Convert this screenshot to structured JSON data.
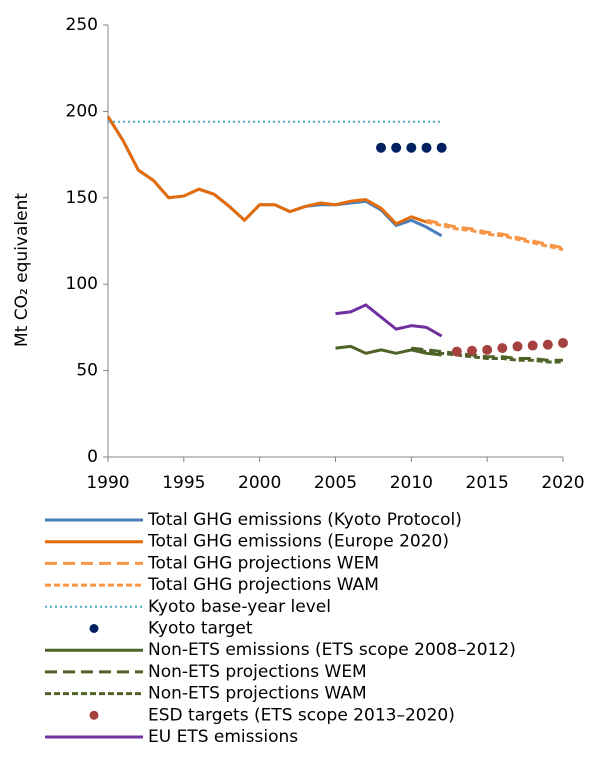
{
  "chart_data": {
    "type": "line",
    "ylabel": "Mt CO₂ equivalent",
    "xlim": [
      1990,
      2020
    ],
    "xticks": [
      1990,
      1995,
      2000,
      2005,
      2010,
      2015,
      2020
    ],
    "ylim": [
      0,
      250
    ],
    "yticks": [
      0,
      50,
      100,
      150,
      200,
      250
    ],
    "series": [
      {
        "name": "Total GHG emissions (Kyoto Protocol)",
        "color": "#4a7ebb",
        "style": "solid",
        "x": [
          1990,
          1991,
          1992,
          1993,
          1994,
          1995,
          1996,
          1997,
          1998,
          1999,
          2000,
          2001,
          2002,
          2003,
          2004,
          2005,
          2006,
          2007,
          2008,
          2009,
          2010,
          2011,
          2012
        ],
        "values": [
          197,
          183,
          166,
          160,
          150,
          151,
          155,
          152,
          145,
          137,
          146,
          146,
          142,
          145,
          146,
          146,
          147,
          148,
          143,
          134,
          137,
          133,
          128
        ]
      },
      {
        "name": "Total GHG emissions (Europe 2020)",
        "color": "#e46c0a",
        "style": "solid",
        "x": [
          1990,
          1991,
          1992,
          1993,
          1994,
          1995,
          1996,
          1997,
          1998,
          1999,
          2000,
          2001,
          2002,
          2003,
          2004,
          2005,
          2006,
          2007,
          2008,
          2009,
          2010,
          2011
        ],
        "values": [
          197,
          183,
          166,
          160,
          150,
          151,
          155,
          152,
          145,
          137,
          146,
          146,
          142,
          145,
          147,
          146,
          148,
          149,
          144,
          135,
          139,
          136
        ]
      },
      {
        "name": "Total GHG projections WEM",
        "color": "#f79646",
        "style": "dashed",
        "x": [
          2011,
          2012,
          2013,
          2014,
          2015,
          2016,
          2017,
          2018,
          2019,
          2020
        ],
        "values": [
          137,
          135,
          133,
          132,
          130,
          129,
          127,
          125,
          123,
          121
        ]
      },
      {
        "name": "Total GHG projections WAM",
        "color": "#f79646",
        "style": "short-dashed",
        "x": [
          2011,
          2012,
          2013,
          2014,
          2015,
          2016,
          2017,
          2018,
          2019,
          2020
        ],
        "values": [
          136,
          134,
          132,
          131,
          129,
          128,
          126,
          124,
          122,
          120
        ]
      },
      {
        "name": "Kyoto base-year level",
        "color": "#4bacc6",
        "style": "dotted",
        "x": [
          1990,
          2012
        ],
        "values": [
          194,
          194
        ]
      },
      {
        "name": "Kyoto target",
        "color": "#002060",
        "style": "marker",
        "x": [
          2008,
          2009,
          2010,
          2011,
          2012
        ],
        "values": [
          179,
          179,
          179,
          179,
          179
        ]
      },
      {
        "name": "Non-ETS emissions (ETS scope 2008–2012)",
        "color": "#4f6228",
        "style": "solid",
        "x": [
          2005,
          2006,
          2007,
          2008,
          2009,
          2010,
          2011,
          2012
        ],
        "values": [
          63,
          64,
          60,
          62,
          60,
          62,
          60,
          59
        ]
      },
      {
        "name": "Non-ETS projections WEM",
        "color": "#4f6228",
        "style": "dashed",
        "x": [
          2010,
          2011,
          2012,
          2013,
          2014,
          2015,
          2016,
          2017,
          2018,
          2019,
          2020
        ],
        "values": [
          63,
          62,
          61,
          60,
          59,
          58,
          58,
          57,
          57,
          56,
          56
        ]
      },
      {
        "name": "Non-ETS projections WAM",
        "color": "#4f6228",
        "style": "short-dashed",
        "x": [
          2010,
          2011,
          2012,
          2013,
          2014,
          2015,
          2016,
          2017,
          2018,
          2019,
          2020
        ],
        "values": [
          62,
          61,
          60,
          59,
          58,
          57,
          57,
          56,
          56,
          55,
          55
        ]
      },
      {
        "name": "ESD targets (ETS scope 2013–2020)",
        "color": "#a5423f",
        "style": "marker",
        "x": [
          2013,
          2014,
          2015,
          2016,
          2017,
          2018,
          2019,
          2020
        ],
        "values": [
          61,
          61.5,
          62,
          63,
          64,
          64.5,
          65,
          66
        ]
      },
      {
        "name": "EU ETS emissions",
        "color": "#7030a0",
        "style": "solid",
        "x": [
          2005,
          2006,
          2007,
          2008,
          2009,
          2010,
          2011,
          2012
        ],
        "values": [
          83,
          84,
          88,
          81,
          74,
          76,
          75,
          70
        ]
      }
    ]
  }
}
